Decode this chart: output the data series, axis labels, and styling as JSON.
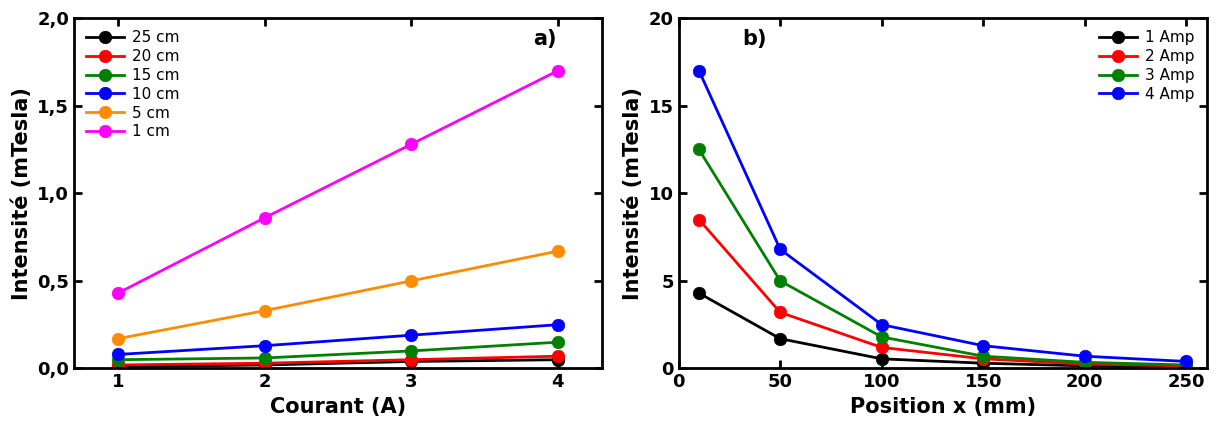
{
  "plot_a": {
    "xlabel": "Courant (A)",
    "ylabel": "Intensité (mTesla)",
    "label": "a)",
    "xlim": [
      0.7,
      4.3
    ],
    "ylim": [
      0.0,
      2.0
    ],
    "yticks": [
      0.0,
      0.5,
      1.0,
      1.5,
      2.0
    ],
    "ytick_labels": [
      "0,0",
      "0,5",
      "1,0",
      "1,5",
      "2,0"
    ],
    "xticks": [
      1,
      2,
      3,
      4
    ],
    "xtick_labels": [
      "1",
      "2",
      "3",
      "4"
    ],
    "series": [
      {
        "label": "25 cm",
        "color": "#000000",
        "x": [
          1,
          2,
          3,
          4
        ],
        "y": [
          0.01,
          0.02,
          0.04,
          0.05
        ]
      },
      {
        "label": "20 cm",
        "color": "#ff0000",
        "x": [
          1,
          2,
          3,
          4
        ],
        "y": [
          0.02,
          0.03,
          0.05,
          0.07
        ]
      },
      {
        "label": "15 cm",
        "color": "#008000",
        "x": [
          1,
          2,
          3,
          4
        ],
        "y": [
          0.05,
          0.06,
          0.1,
          0.15
        ]
      },
      {
        "label": "10 cm",
        "color": "#0000ff",
        "x": [
          1,
          2,
          3,
          4
        ],
        "y": [
          0.08,
          0.13,
          0.19,
          0.25
        ]
      },
      {
        "label": "5 cm",
        "color": "#ff8c00",
        "x": [
          1,
          2,
          3,
          4
        ],
        "y": [
          0.17,
          0.33,
          0.5,
          0.67
        ]
      },
      {
        "label": "1 cm",
        "color": "#ff00ff",
        "x": [
          1,
          2,
          3,
          4
        ],
        "y": [
          0.43,
          0.86,
          1.28,
          1.7
        ]
      }
    ]
  },
  "plot_b": {
    "xlabel": "Position x (mm)",
    "ylabel": "Intensité (mTesla)",
    "label": "b)",
    "xlim": [
      0,
      260
    ],
    "ylim": [
      0,
      20
    ],
    "yticks": [
      0,
      5,
      10,
      15,
      20
    ],
    "ytick_labels": [
      "0",
      "5",
      "10",
      "15",
      "20"
    ],
    "xticks": [
      0,
      50,
      100,
      150,
      200,
      250
    ],
    "xtick_labels": [
      "0",
      "50",
      "100",
      "150",
      "200",
      "250"
    ],
    "series": [
      {
        "label": "1 Amp",
        "color": "#000000",
        "x": [
          10,
          50,
          100,
          150,
          200,
          250
        ],
        "y": [
          4.3,
          1.7,
          0.55,
          0.3,
          0.15,
          0.1
        ]
      },
      {
        "label": "2 Amp",
        "color": "#ff0000",
        "x": [
          10,
          50,
          100,
          150,
          200,
          250
        ],
        "y": [
          8.5,
          3.2,
          1.2,
          0.55,
          0.25,
          0.15
        ]
      },
      {
        "label": "3 Amp",
        "color": "#008000",
        "x": [
          10,
          50,
          100,
          150,
          200,
          250
        ],
        "y": [
          12.5,
          5.0,
          1.8,
          0.7,
          0.35,
          0.2
        ]
      },
      {
        "label": "4 Amp",
        "color": "#0000ff",
        "x": [
          10,
          50,
          100,
          150,
          200,
          250
        ],
        "y": [
          17.0,
          6.8,
          2.5,
          1.3,
          0.7,
          0.4
        ]
      }
    ]
  },
  "fig_width": 12.2,
  "fig_height": 4.28,
  "dpi": 100,
  "markersize": 9,
  "linewidth": 2.0,
  "spine_linewidth": 2.0,
  "tick_labelsize": 13,
  "axis_labelsize": 15,
  "legend_fontsize": 11,
  "label_fontsize": 15
}
